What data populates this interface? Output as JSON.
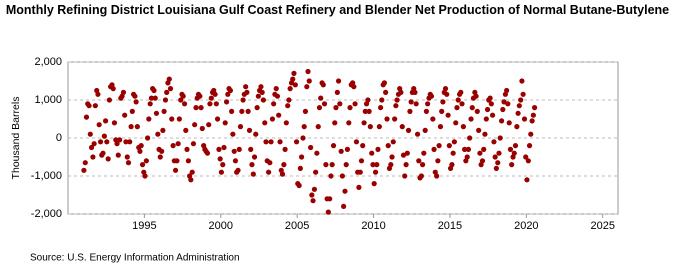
{
  "chart_data": {
    "type": "scatter",
    "title": "Monthly Refining District Louisiana Gulf Coast Refinery and Blender Net Production of Normal Butane-Butylene",
    "y_label": "Thousand Barrels",
    "source": "Source: U.S. Energy Information Administration",
    "color": "#990000",
    "grid": true,
    "xlim": [
      1990,
      2026
    ],
    "xticks": [
      1995,
      2000,
      2005,
      2010,
      2015,
      2020,
      2025
    ],
    "ylim": [
      -2000,
      2000
    ],
    "yticks": [
      {
        "value": -2000,
        "label": "-2,000"
      },
      {
        "value": -1000,
        "label": "-1,000"
      },
      0,
      {
        "value": 1000,
        "label": "1,000"
      },
      {
        "value": 2000,
        "label": "2,000"
      }
    ],
    "x": [
      1991.04,
      1991.13,
      1991.21,
      1991.29,
      1991.38,
      1991.46,
      1991.54,
      1991.63,
      1991.71,
      1991.79,
      1991.88,
      1991.96,
      1992.04,
      1992.13,
      1992.21,
      1992.29,
      1992.38,
      1992.46,
      1992.54,
      1992.63,
      1992.71,
      1992.79,
      1992.88,
      1992.96,
      1993.04,
      1993.13,
      1993.21,
      1993.29,
      1993.38,
      1993.46,
      1993.54,
      1993.63,
      1993.71,
      1993.79,
      1993.88,
      1993.96,
      1994.04,
      1994.13,
      1994.21,
      1994.29,
      1994.38,
      1994.46,
      1994.54,
      1994.63,
      1994.71,
      1994.79,
      1994.88,
      1994.96,
      1995.04,
      1995.13,
      1995.21,
      1995.29,
      1995.38,
      1995.46,
      1995.54,
      1995.63,
      1995.71,
      1995.79,
      1995.88,
      1995.96,
      1996.04,
      1996.13,
      1996.21,
      1996.29,
      1996.38,
      1996.46,
      1996.54,
      1996.63,
      1996.71,
      1996.79,
      1996.88,
      1996.96,
      1997.04,
      1997.13,
      1997.21,
      1997.29,
      1997.38,
      1997.46,
      1997.54,
      1997.63,
      1997.71,
      1997.79,
      1997.88,
      1997.96,
      1998.04,
      1998.13,
      1998.21,
      1998.29,
      1998.38,
      1998.46,
      1998.54,
      1998.63,
      1998.71,
      1998.79,
      1998.88,
      1998.96,
      1999.04,
      1999.13,
      1999.21,
      1999.29,
      1999.38,
      1999.46,
      1999.54,
      1999.63,
      1999.71,
      1999.79,
      1999.88,
      1999.96,
      2000.04,
      2000.13,
      2000.21,
      2000.29,
      2000.38,
      2000.46,
      2000.54,
      2000.63,
      2000.71,
      2000.79,
      2000.88,
      2000.96,
      2001.04,
      2001.13,
      2001.21,
      2001.29,
      2001.38,
      2001.46,
      2001.54,
      2001.63,
      2001.71,
      2001.79,
      2001.88,
      2001.96,
      2002.04,
      2002.13,
      2002.21,
      2002.29,
      2002.38,
      2002.46,
      2002.54,
      2002.63,
      2002.71,
      2002.79,
      2002.88,
      2002.96,
      2003.04,
      2003.13,
      2003.21,
      2003.29,
      2003.38,
      2003.46,
      2003.54,
      2003.63,
      2003.71,
      2003.79,
      2003.88,
      2003.96,
      2004.04,
      2004.13,
      2004.21,
      2004.29,
      2004.38,
      2004.46,
      2004.54,
      2004.63,
      2004.71,
      2004.79,
      2004.88,
      2004.96,
      2005.04,
      2005.13,
      2005.21,
      2005.29,
      2005.38,
      2005.46,
      2005.54,
      2005.63,
      2005.71,
      2005.79,
      2005.88,
      2005.96,
      2006.04,
      2006.13,
      2006.21,
      2006.29,
      2006.38,
      2006.46,
      2006.54,
      2006.63,
      2006.71,
      2006.79,
      2006.88,
      2006.96,
      2007.04,
      2007.13,
      2007.21,
      2007.29,
      2007.38,
      2007.46,
      2007.54,
      2007.63,
      2007.71,
      2007.79,
      2007.88,
      2007.96,
      2008.04,
      2008.13,
      2008.21,
      2008.29,
      2008.38,
      2008.46,
      2008.54,
      2008.63,
      2008.71,
      2008.79,
      2008.88,
      2008.96,
      2009.04,
      2009.13,
      2009.21,
      2009.29,
      2009.38,
      2009.46,
      2009.54,
      2009.63,
      2009.71,
      2009.79,
      2009.88,
      2009.96,
      2010.04,
      2010.13,
      2010.21,
      2010.29,
      2010.38,
      2010.46,
      2010.54,
      2010.63,
      2010.71,
      2010.79,
      2010.88,
      2010.96,
      2011.04,
      2011.13,
      2011.21,
      2011.29,
      2011.38,
      2011.46,
      2011.54,
      2011.63,
      2011.71,
      2011.79,
      2011.88,
      2011.96,
      2012.04,
      2012.13,
      2012.21,
      2012.29,
      2012.38,
      2012.46,
      2012.54,
      2012.63,
      2012.71,
      2012.79,
      2012.88,
      2012.96,
      2013.04,
      2013.13,
      2013.21,
      2013.29,
      2013.38,
      2013.46,
      2013.54,
      2013.63,
      2013.71,
      2013.79,
      2013.88,
      2013.96,
      2014.04,
      2014.13,
      2014.21,
      2014.29,
      2014.38,
      2014.46,
      2014.54,
      2014.63,
      2014.71,
      2014.79,
      2014.88,
      2014.96,
      2015.04,
      2015.13,
      2015.21,
      2015.29,
      2015.38,
      2015.46,
      2015.54,
      2015.63,
      2015.71,
      2015.79,
      2015.88,
      2015.96,
      2016.04,
      2016.13,
      2016.21,
      2016.29,
      2016.38,
      2016.46,
      2016.54,
      2016.63,
      2016.71,
      2016.79,
      2016.88,
      2016.96,
      2017.04,
      2017.13,
      2017.21,
      2017.29,
      2017.38,
      2017.46,
      2017.54,
      2017.63,
      2017.71,
      2017.79,
      2017.88,
      2017.96,
      2018.04,
      2018.13,
      2018.21,
      2018.29,
      2018.38,
      2018.46,
      2018.54,
      2018.63,
      2018.71,
      2018.79,
      2018.88,
      2018.96,
      2019.04,
      2019.13,
      2019.21,
      2019.29,
      2019.38,
      2019.46,
      2019.54,
      2019.63,
      2019.71,
      2019.79,
      2019.88,
      2019.96,
      2020.04,
      2020.13,
      2020.21,
      2020.29,
      2020.38,
      2020.46,
      2020.54
    ],
    "values": [
      -850,
      -650,
      550,
      900,
      850,
      100,
      -250,
      -500,
      -150,
      850,
      1250,
      1150,
      350,
      -100,
      -450,
      -400,
      50,
      450,
      -100,
      -550,
      1000,
      1350,
      1400,
      1300,
      400,
      -50,
      -150,
      -450,
      -50,
      1050,
      1100,
      1200,
      600,
      -100,
      -500,
      -650,
      -100,
      300,
      700,
      1150,
      1100,
      950,
      300,
      -250,
      -350,
      -200,
      -700,
      -900,
      -1000,
      -600,
      0,
      500,
      900,
      1050,
      1300,
      1250,
      1050,
      650,
      100,
      -300,
      -500,
      -350,
      200,
      700,
      1000,
      1200,
      1450,
      1550,
      1300,
      500,
      -200,
      -600,
      -850,
      -600,
      -150,
      500,
      1000,
      1150,
      1100,
      900,
      200,
      -300,
      -600,
      -1000,
      -1100,
      -900,
      -150,
      350,
      800,
      1050,
      1150,
      1100,
      800,
      250,
      -200,
      -300,
      -350,
      -400,
      350,
      900,
      1050,
      1200,
      1250,
      1150,
      900,
      500,
      -300,
      -550,
      -900,
      -700,
      -250,
      400,
      950,
      1150,
      1300,
      1250,
      700,
      100,
      -350,
      -600,
      -900,
      -850,
      -300,
      300,
      700,
      1000,
      1150,
      1350,
      1200,
      700,
      200,
      -300,
      -700,
      -950,
      -500,
      100,
      800,
      1100,
      1250,
      1350,
      1200,
      1000,
      400,
      -100,
      -600,
      -900,
      -650,
      -100,
      500,
      900,
      1150,
      1300,
      1100,
      600,
      -100,
      -850,
      -950,
      -700,
      -300,
      400,
      850,
      1000,
      1300,
      1450,
      1550,
      1700,
      1400,
      -100,
      -1200,
      -1250,
      -800,
      -500,
      0,
      300,
      700,
      1350,
      1750,
      1500,
      -250,
      -1500,
      -1650,
      -1350,
      -900,
      -400,
      300,
      800,
      1050,
      1450,
      1400,
      900,
      -700,
      -1600,
      -1950,
      -1600,
      -1000,
      -700,
      -200,
      400,
      800,
      1200,
      1500,
      900,
      -350,
      -1000,
      -1800,
      -1400,
      -700,
      -300,
      400,
      800,
      1400,
      1450,
      1350,
      900,
      -100,
      -900,
      -1300,
      -900,
      -600,
      -200,
      400,
      700,
      900,
      1000,
      700,
      300,
      -400,
      -700,
      -1200,
      -900,
      -700,
      -300,
      300,
      800,
      1000,
      1400,
      1450,
      1200,
      500,
      -200,
      -800,
      -700,
      -500,
      -100,
      500,
      850,
      1000,
      1150,
      1300,
      1200,
      300,
      -450,
      -1000,
      -700,
      -400,
      200,
      700,
      950,
      1200,
      1300,
      1200,
      900,
      100,
      -600,
      -1050,
      -1000,
      -700,
      -400,
      200,
      700,
      900,
      1050,
      1150,
      1100,
      500,
      -300,
      -900,
      -1000,
      -600,
      -200,
      300,
      700,
      950,
      1200,
      1300,
      1150,
      600,
      -200,
      -800,
      -700,
      -400,
      -100,
      400,
      800,
      1000,
      1150,
      1200,
      900,
      300,
      -300,
      -600,
      -500,
      -300,
      0,
      500,
      800,
      1050,
      1200,
      1100,
      700,
      200,
      -400,
      -700,
      -600,
      -300,
      100,
      500,
      750,
      1000,
      1050,
      900,
      600,
      -100,
      -500,
      -800,
      -650,
      -400,
      0,
      450,
      750,
      950,
      1150,
      1250,
      900,
      400,
      -300,
      -700,
      -500,
      -400,
      -200,
      300,
      650,
      850,
      1000,
      1500,
      1150,
      500,
      -500,
      -1100,
      -600,
      -200,
      100,
      450,
      600,
      800
    ]
  }
}
